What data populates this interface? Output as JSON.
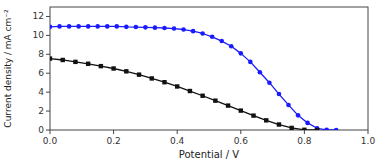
{
  "chart_data": {
    "type": "line",
    "xlabel": "Potential / V",
    "ylabel": "Current density / mA cm⁻²",
    "xlim": [
      0.0,
      1.0
    ],
    "ylim": [
      0.0,
      13.0
    ],
    "xticks": [
      {
        "value": 0.0,
        "label": "0.0"
      },
      0.2,
      0.4,
      0.6,
      0.8,
      {
        "value": 1.0,
        "label": "1.0"
      }
    ],
    "yticks": [
      0,
      2,
      4,
      6,
      8,
      10,
      12
    ],
    "grid": false,
    "series": [
      {
        "color": "#1a1aff",
        "marker": "circle",
        "x": [
          0.0,
          0.03,
          0.06,
          0.09,
          0.12,
          0.15,
          0.18,
          0.21,
          0.24,
          0.27,
          0.3,
          0.33,
          0.36,
          0.39,
          0.42,
          0.45,
          0.48,
          0.51,
          0.54,
          0.57,
          0.6,
          0.63,
          0.66,
          0.69,
          0.72,
          0.75,
          0.78,
          0.81,
          0.84,
          0.87,
          0.9
        ],
        "values": [
          10.9,
          10.95,
          10.95,
          10.95,
          10.95,
          10.95,
          10.95,
          10.95,
          10.9,
          10.88,
          10.85,
          10.82,
          10.78,
          10.72,
          10.62,
          10.45,
          10.2,
          9.85,
          9.4,
          8.85,
          8.1,
          7.2,
          6.1,
          5.0,
          3.8,
          2.65,
          1.55,
          0.75,
          0.18,
          0.02,
          0.0
        ]
      },
      {
        "color": "#111111",
        "marker": "square",
        "x": [
          0.0,
          0.04,
          0.08,
          0.12,
          0.16,
          0.2,
          0.24,
          0.28,
          0.32,
          0.36,
          0.4,
          0.44,
          0.48,
          0.52,
          0.56,
          0.6,
          0.64,
          0.68,
          0.72,
          0.76,
          0.8,
          0.84
        ],
        "values": [
          7.55,
          7.4,
          7.2,
          7.0,
          6.75,
          6.5,
          6.2,
          5.85,
          5.45,
          5.05,
          4.6,
          4.12,
          3.62,
          3.1,
          2.58,
          2.05,
          1.52,
          1.02,
          0.58,
          0.22,
          0.02,
          0.0
        ]
      }
    ]
  }
}
